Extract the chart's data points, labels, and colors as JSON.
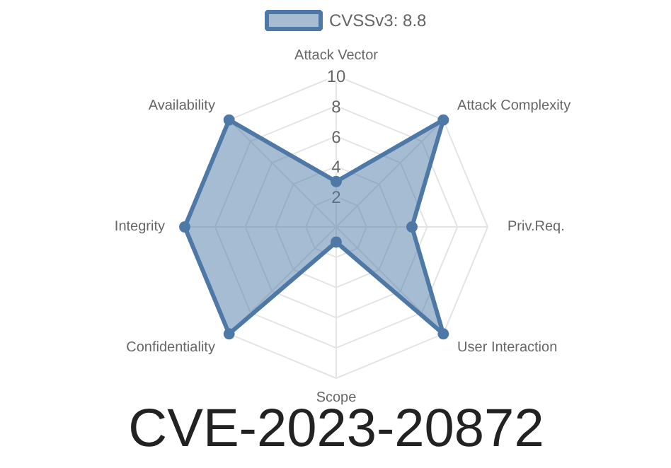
{
  "chart_data": {
    "type": "radar",
    "title": "CVE-2023-20872",
    "categories": [
      "Attack Vector",
      "Attack Complexity",
      "Priv.Req.",
      "User Interaction",
      "Scope",
      "Confidentiality",
      "Integrity",
      "Availability"
    ],
    "series": [
      {
        "name": "CVSSv3: 8.8",
        "color": "#4e79a7",
        "values": [
          3,
          10,
          5,
          10,
          1,
          10,
          10,
          10
        ]
      }
    ],
    "ylim": [
      0,
      10
    ],
    "yticks": [
      2,
      4,
      6,
      8,
      10
    ],
    "grid": true,
    "legend": "top",
    "marker": "circle"
  }
}
